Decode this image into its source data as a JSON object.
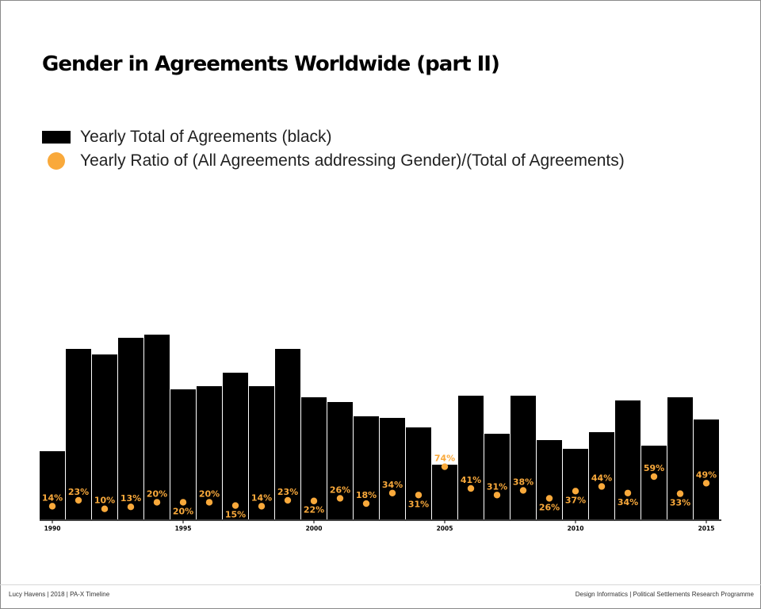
{
  "title": "Gender in Agreements Worldwide (part II)",
  "legend": {
    "bars_label": "Yearly Total of Agreements (black)",
    "dots_label": "Yearly Ratio of (All Agreements addressing Gender)/(Total of Agreements)"
  },
  "footer": {
    "left": "Lucy Havens | 2018 | PA-X Timeline",
    "right": "Design Informatics | Political Settlements Research Programme"
  },
  "colors": {
    "bars": "#000000",
    "dots": "#f9a93b",
    "label": "#f9a93b"
  },
  "chart_data": {
    "type": "bar",
    "x_tick_labels": [
      "1990",
      "1995",
      "2000",
      "2005",
      "2010",
      "2015"
    ],
    "categories": [
      "1990",
      "1991",
      "1992",
      "1993",
      "1994",
      "1995",
      "1996",
      "1997",
      "1998",
      "1999",
      "2000",
      "2001",
      "2002",
      "2003",
      "2004",
      "2005",
      "2006",
      "2007",
      "2008",
      "2009",
      "2010",
      "2011",
      "2012",
      "2013",
      "2014",
      "2015"
    ],
    "series": [
      {
        "name": "Yearly Total of Agreements (black)",
        "type": "bar",
        "values": [
          86,
          215,
          208,
          229,
          233,
          164,
          168,
          185,
          168,
          215,
          154,
          148,
          130,
          128,
          116,
          69,
          156,
          108,
          156,
          100,
          89,
          110,
          150,
          93,
          154,
          126
        ]
      },
      {
        "name": "Yearly Ratio of (All Agreements addressing Gender)/(Total of Agreements)",
        "type": "scatter",
        "values": [
          14,
          23,
          10,
          13,
          20,
          20,
          20,
          15,
          14,
          23,
          22,
          26,
          18,
          34,
          31,
          74,
          41,
          31,
          38,
          26,
          37,
          44,
          34,
          59,
          33,
          49
        ],
        "labels": [
          "14%",
          "23%",
          "10%",
          "13%",
          "20%",
          "20%",
          "20%",
          "15%",
          "14%",
          "23%",
          "22%",
          "26%",
          "18%",
          "34%",
          "31%",
          "74%",
          "41%",
          "31%",
          "38%",
          "26%",
          "37%",
          "44%",
          "34%",
          "59%",
          "33%",
          "49%"
        ],
        "label_position": [
          "above",
          "above",
          "above",
          "above",
          "above",
          "below",
          "above",
          "below",
          "above",
          "above",
          "below",
          "above",
          "above",
          "above",
          "below",
          "above",
          "above",
          "above",
          "above",
          "below",
          "below",
          "above",
          "below",
          "above",
          "below",
          "above"
        ]
      }
    ],
    "ylim": [
      0,
      260
    ],
    "grid": false,
    "legend_position": "top-left"
  }
}
